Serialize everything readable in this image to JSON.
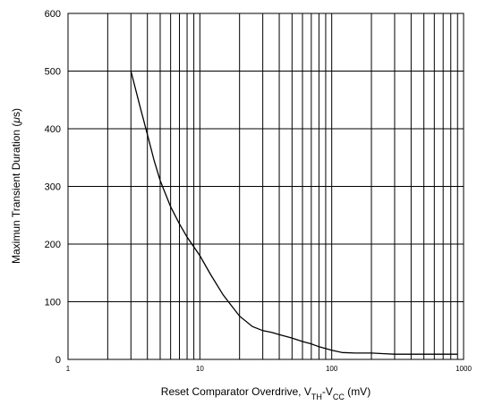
{
  "chart_data": {
    "type": "line",
    "title": "",
    "xlabel": {
      "prefix": "Reset Comparator Overdrive, V",
      "sub1": "TH",
      "middle": "-V",
      "sub2": "CC",
      "suffix": " (mV)"
    },
    "ylabel": {
      "prefix": "Maximun Transient Duration (",
      "mu": "μ",
      "suffix": "s)"
    },
    "x_scale": "log",
    "xlim": [
      1,
      1000
    ],
    "ylim": [
      0,
      600
    ],
    "grid": true,
    "x_tick_labels": [
      "1",
      "10",
      "100",
      "1000"
    ],
    "y_tick_labels": [
      "0",
      "100",
      "200",
      "300",
      "400",
      "500",
      "600"
    ],
    "series": [
      {
        "color": "#000000",
        "x": [
          3,
          3.5,
          4,
          4.5,
          5,
          6,
          7,
          8,
          10,
          12,
          15,
          20,
          25,
          30,
          35,
          40,
          50,
          60,
          70,
          80,
          100,
          120,
          150,
          200,
          250,
          300,
          400,
          500,
          700,
          900
        ],
        "y": [
          500,
          440,
          390,
          345,
          310,
          265,
          235,
          212,
          180,
          148,
          112,
          75,
          57,
          50,
          47,
          43,
          37,
          31,
          27,
          22,
          16,
          12,
          11,
          11,
          10,
          9,
          9,
          9,
          9,
          9
        ]
      }
    ]
  }
}
